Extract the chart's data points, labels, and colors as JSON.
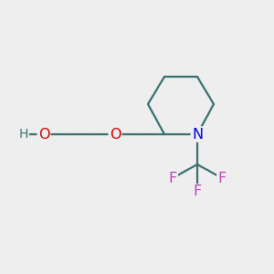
{
  "background_color": "#eeeeee",
  "atom_colors": {
    "O": "#cc0000",
    "N": "#0000ee",
    "F": "#bb44bb",
    "C": "#3a7070",
    "H": "#3a7070"
  },
  "bond_color": "#3a7070",
  "bond_width": 1.6,
  "font_size_atoms": 11.5,
  "font_size_H": 10
}
